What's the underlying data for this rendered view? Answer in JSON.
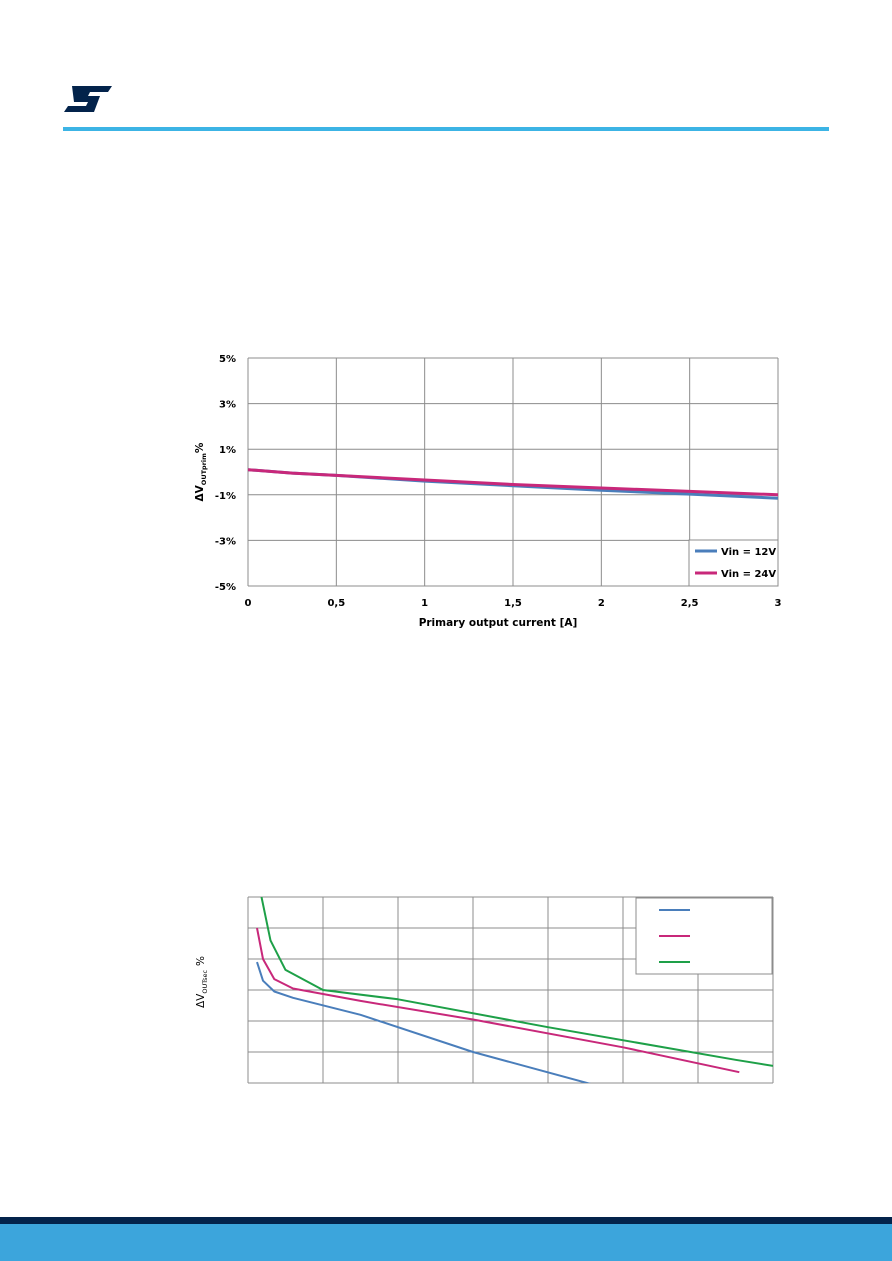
{
  "page": {
    "accent_color": "#3cb4e5",
    "footer_dark": "#03234b",
    "footer_light": "#3ca5dc"
  },
  "logo": {
    "text": "ST",
    "color": "#03234b"
  },
  "chart_data": [
    {
      "type": "line",
      "title": "",
      "xlabel": "Primary output current [A]",
      "ylabel_main": "ΔV",
      "ylabel_sub": "OUTprim",
      "ylabel_suffix": "%",
      "xlim": [
        0,
        3
      ],
      "ylim": [
        -5,
        5
      ],
      "x_ticks": [
        "0",
        "0,5",
        "1",
        "1,5",
        "2",
        "2,5",
        "3"
      ],
      "y_ticks": [
        "5%",
        "3%",
        "1%",
        "-1%",
        "-3%",
        "-5%"
      ],
      "y_tick_values": [
        5,
        3,
        1,
        -1,
        -3,
        -5
      ],
      "x_tick_values": [
        0,
        0.5,
        1,
        1.5,
        2,
        2.5,
        3
      ],
      "grid": true,
      "legend_position": "bottom-right",
      "series": [
        {
          "name": "Vin = 12V",
          "color": "#4a7ebb",
          "x": [
            0,
            0.25,
            0.5,
            1,
            1.5,
            2,
            2.5,
            3
          ],
          "y": [
            0.1,
            -0.05,
            -0.15,
            -0.4,
            -0.6,
            -0.8,
            -0.97,
            -1.15
          ]
        },
        {
          "name": "Vin = 24V",
          "color": "#c8287a",
          "x": [
            0,
            0.25,
            0.5,
            1,
            1.5,
            2,
            2.5,
            3
          ],
          "y": [
            0.1,
            -0.05,
            -0.15,
            -0.35,
            -0.55,
            -0.7,
            -0.85,
            -1.0
          ]
        }
      ]
    },
    {
      "type": "line",
      "title": "",
      "ylabel_main": "ΔV",
      "ylabel_sub": "OUTsec",
      "ylabel_suffix": "%",
      "xlim": [
        0,
        7
      ],
      "ylim": [
        0,
        6
      ],
      "grid": true,
      "legend_position": "top-right",
      "series": [
        {
          "color": "#4a7ebb",
          "x": [
            0.12,
            0.2,
            0.35,
            0.6,
            1.5,
            3,
            4.6,
            4.75
          ],
          "y": [
            3.9,
            3.3,
            2.95,
            2.75,
            2.2,
            1.0,
            -0.05,
            -0.05
          ]
        },
        {
          "color": "#c8287a",
          "x": [
            0.12,
            0.2,
            0.35,
            0.6,
            1.5,
            3,
            5,
            6.55
          ],
          "y": [
            5.0,
            4.0,
            3.35,
            3.05,
            2.65,
            2.05,
            1.15,
            0.35
          ]
        },
        {
          "color": "#1ea048",
          "x": [
            0.18,
            0.3,
            0.5,
            1,
            2,
            4,
            6.5,
            7
          ],
          "y": [
            6.0,
            4.6,
            3.65,
            3.0,
            2.7,
            1.8,
            0.75,
            0.55
          ]
        }
      ]
    }
  ]
}
